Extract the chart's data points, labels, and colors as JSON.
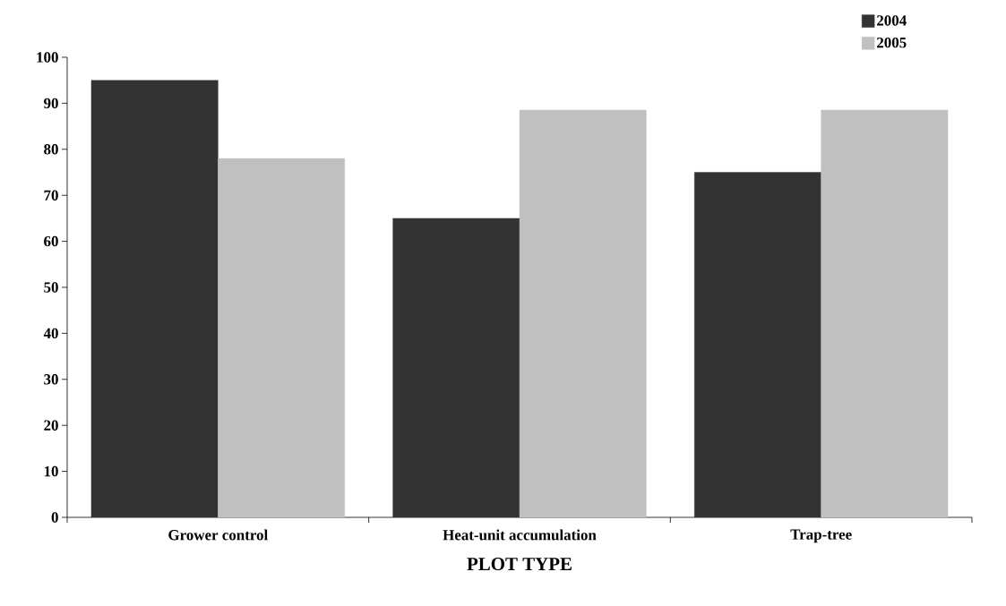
{
  "chart_data": {
    "type": "bar",
    "xlabel": "PLOT TYPE",
    "categories": [
      "Grower control",
      "Heat-unit accumulation",
      "Trap-tree"
    ],
    "series": [
      {
        "name": "2004",
        "color": "#333333",
        "values": [
          95,
          65,
          75
        ]
      },
      {
        "name": "2005",
        "color": "#c0c0c0",
        "values": [
          78,
          88.5,
          88.5
        ]
      }
    ],
    "ylim": [
      0,
      100
    ],
    "yticks": [
      0,
      10,
      20,
      30,
      40,
      50,
      60,
      70,
      80,
      90,
      100
    ],
    "grid": false,
    "legend": "top right"
  }
}
